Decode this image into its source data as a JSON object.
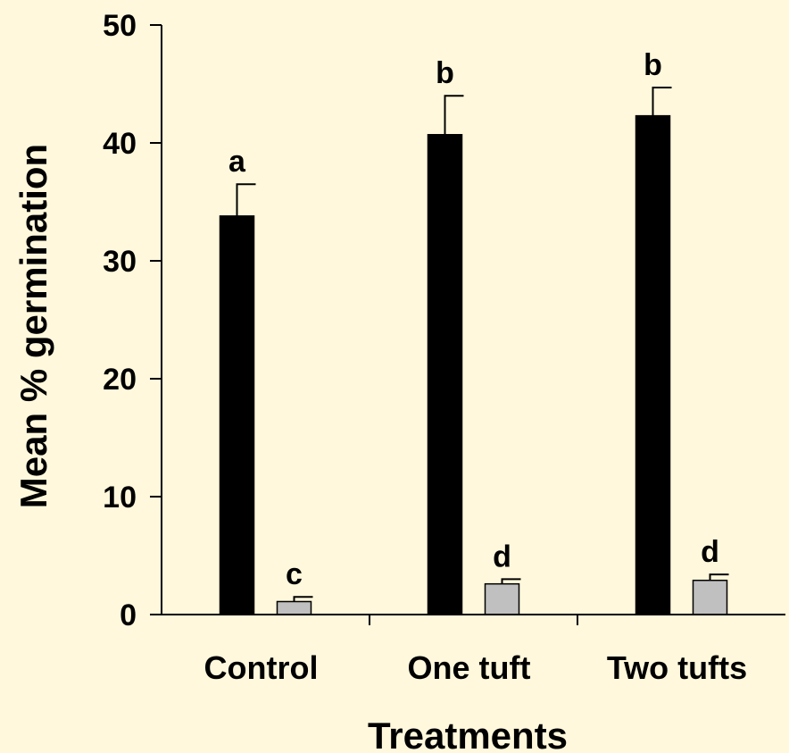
{
  "chart_data": {
    "type": "bar",
    "title": "",
    "xlabel": "Treatments",
    "ylabel": "Mean % germination",
    "ylim": [
      0,
      50
    ],
    "yticks": [
      0,
      10,
      20,
      30,
      40,
      50
    ],
    "categories": [
      "Control",
      "One tuft",
      "Two tufts"
    ],
    "series": [
      {
        "color": "#000000",
        "values": [
          33.8,
          40.7,
          42.3
        ],
        "errors": [
          2.7,
          3.3,
          2.4
        ],
        "labels": [
          "a",
          "b",
          "b"
        ]
      },
      {
        "color": "#C0C0C0",
        "values": [
          1.1,
          2.6,
          2.9
        ],
        "errors": [
          0.4,
          0.4,
          0.5
        ],
        "labels": [
          "c",
          "d",
          "d"
        ]
      }
    ],
    "grid": false,
    "legend": "none",
    "background": "#FFF8DC"
  }
}
